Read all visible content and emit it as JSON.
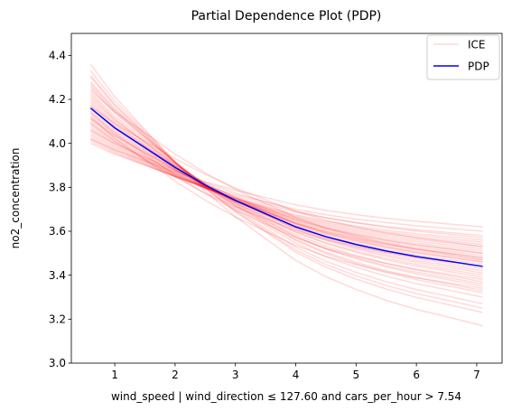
{
  "chart_data": {
    "type": "line",
    "title": "Partial Dependence Plot (PDP)",
    "xlabel": "wind_speed | wind_direction ≤ 127.60 and cars_per_hour > 7.54",
    "ylabel": "no2_concentration",
    "xlim": [
      0.28,
      7.42
    ],
    "ylim": [
      3.0,
      4.5
    ],
    "xticks": [
      1,
      2,
      3,
      4,
      5,
      6,
      7
    ],
    "yticks": [
      3.0,
      3.2,
      3.4,
      3.6,
      3.8,
      4.0,
      4.2,
      4.4
    ],
    "x": [
      0.6,
      1.0,
      1.5,
      2.0,
      2.5,
      3.0,
      3.5,
      4.0,
      4.5,
      5.0,
      5.5,
      6.0,
      6.5,
      7.1
    ],
    "grid": false,
    "legend_position": "top-right",
    "series": [
      {
        "name": "PDP",
        "color": "#0000ff",
        "values": [
          4.16,
          4.07,
          3.98,
          3.89,
          3.81,
          3.74,
          3.68,
          3.62,
          3.575,
          3.54,
          3.51,
          3.485,
          3.465,
          3.44
        ]
      },
      {
        "name": "ICE",
        "color": "#ff0000",
        "opacity": 0.15,
        "curves": [
          {
            "start": 4.36,
            "end": 3.17
          },
          {
            "start": 4.33,
            "end": 3.23
          },
          {
            "start": 4.3,
            "end": 3.27
          },
          {
            "start": 4.28,
            "end": 3.3
          },
          {
            "start": 4.26,
            "end": 3.33
          },
          {
            "start": 4.25,
            "end": 3.35
          },
          {
            "start": 4.23,
            "end": 3.37
          },
          {
            "start": 4.21,
            "end": 3.39
          },
          {
            "start": 4.2,
            "end": 3.41
          },
          {
            "start": 4.18,
            "end": 3.42
          },
          {
            "start": 4.17,
            "end": 3.43
          },
          {
            "start": 4.15,
            "end": 3.44
          },
          {
            "start": 4.14,
            "end": 3.45
          },
          {
            "start": 4.13,
            "end": 3.46
          },
          {
            "start": 4.12,
            "end": 3.47
          },
          {
            "start": 4.11,
            "end": 3.48
          },
          {
            "start": 4.1,
            "end": 3.48
          },
          {
            "start": 4.09,
            "end": 3.49
          },
          {
            "start": 4.08,
            "end": 3.5
          },
          {
            "start": 4.07,
            "end": 3.51
          },
          {
            "start": 4.06,
            "end": 3.52
          },
          {
            "start": 4.05,
            "end": 3.53
          },
          {
            "start": 4.04,
            "end": 3.54
          },
          {
            "start": 4.03,
            "end": 3.55
          },
          {
            "start": 4.02,
            "end": 3.56
          },
          {
            "start": 4.01,
            "end": 3.58
          },
          {
            "start": 4.0,
            "end": 3.6
          },
          {
            "start": 4.22,
            "end": 3.36
          },
          {
            "start": 4.16,
            "end": 3.46
          },
          {
            "start": 4.27,
            "end": 3.32
          },
          {
            "start": 4.19,
            "end": 3.4
          },
          {
            "start": 4.11,
            "end": 3.5
          },
          {
            "start": 4.06,
            "end": 3.57
          },
          {
            "start": 4.31,
            "end": 3.25
          },
          {
            "start": 4.14,
            "end": 3.38
          },
          {
            "start": 4.09,
            "end": 3.44
          },
          {
            "start": 4.24,
            "end": 3.47
          },
          {
            "start": 4.17,
            "end": 3.53
          },
          {
            "start": 4.02,
            "end": 3.62
          },
          {
            "start": 4.12,
            "end": 3.34
          }
        ]
      }
    ],
    "legend": [
      {
        "label": "ICE",
        "color": "#ff0000",
        "opacity": 0.15
      },
      {
        "label": "PDP",
        "color": "#0000ff",
        "opacity": 1
      }
    ]
  }
}
